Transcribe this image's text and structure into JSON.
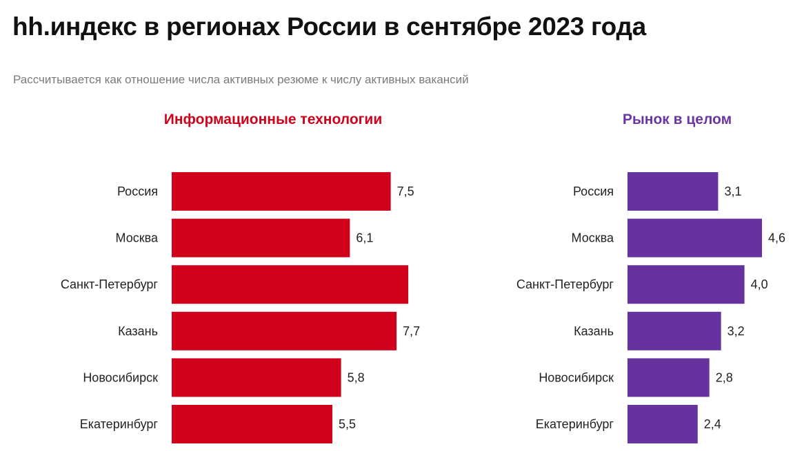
{
  "title": "hh.индекс в регионах России в сентябре 2023 года",
  "subtitle": "Рассчитывается как отношение числа активных резюме к числу активных вакансий",
  "chart_data": [
    {
      "type": "bar",
      "orientation": "horizontal",
      "title": "Информационные технологии",
      "title_color": "#d0021b",
      "bar_color": "#d0021b",
      "categories": [
        "Россия",
        "Москва",
        "Санкт-Петербург",
        "Казань",
        "Новосибирск",
        "Екатеринбург"
      ],
      "values": [
        7.5,
        6.1,
        8.1,
        7.7,
        5.8,
        5.5
      ],
      "value_labels": [
        "7,5",
        "6,1",
        "",
        "7,7",
        "5,8",
        "5,5"
      ],
      "xlim": [
        0,
        8.5
      ],
      "grid": false,
      "legend": "none"
    },
    {
      "type": "bar",
      "orientation": "horizontal",
      "title": "Рынок в целом",
      "title_color": "#6b35a3",
      "bar_color": "#66339e",
      "categories": [
        "Россия",
        "Москва",
        "Санкт-Петербург",
        "Казань",
        "Новосибирск",
        "Екатеринбург"
      ],
      "values": [
        3.1,
        4.6,
        4.0,
        3.2,
        2.8,
        2.4
      ],
      "value_labels": [
        "3,1",
        "4,6",
        "4,0",
        "3,2",
        "2,8",
        "2,4"
      ],
      "xlim": [
        0,
        5
      ],
      "grid": false,
      "legend": "none"
    }
  ]
}
